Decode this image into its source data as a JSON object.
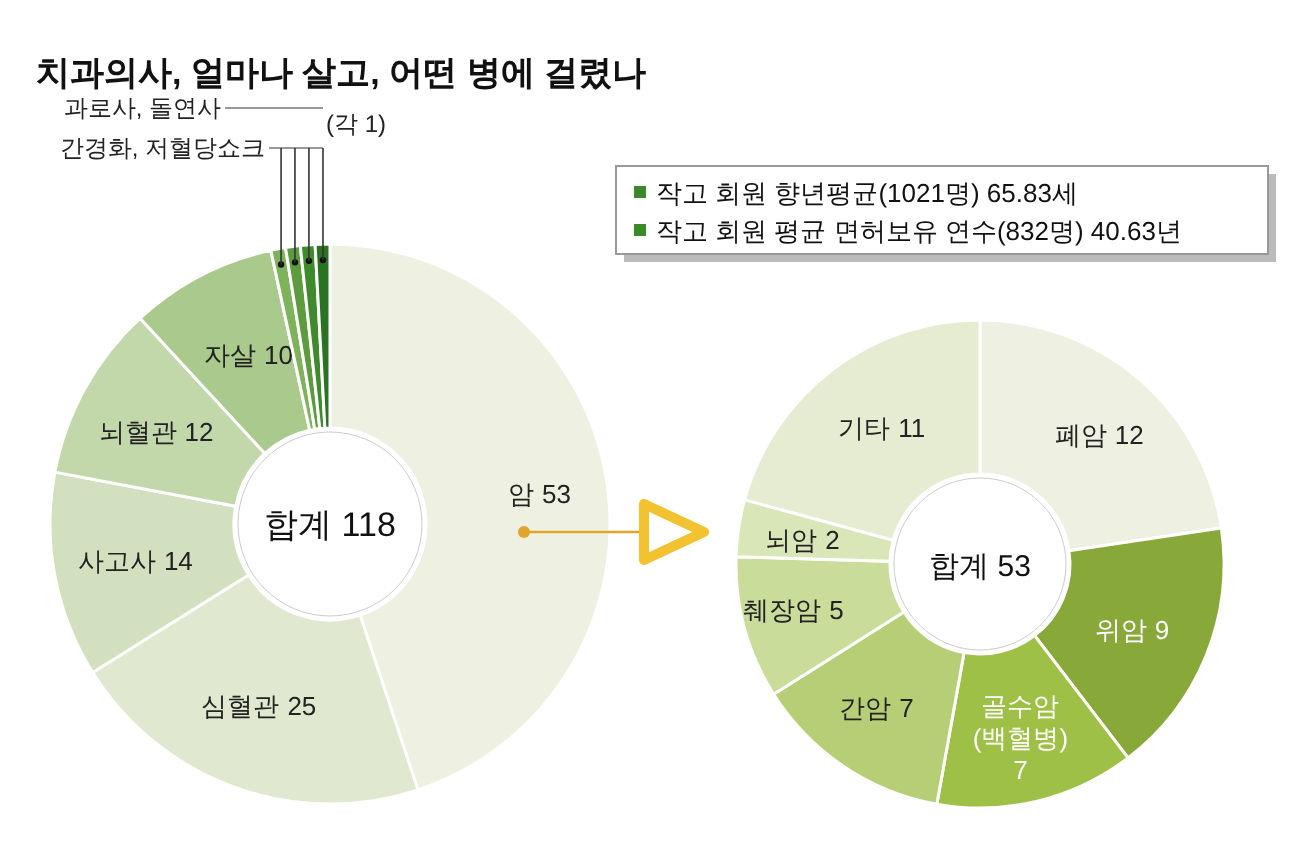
{
  "chart_data": [
    {
      "type": "donut",
      "title": "치과의사, 얼마나 살고, 어떤 병에 걸렸나",
      "categories": [
        "암",
        "심혈관",
        "사고사",
        "뇌혈관",
        "자살",
        null,
        null,
        null,
        null
      ],
      "values": [
        53,
        25,
        14,
        12,
        10,
        1,
        1,
        1,
        1
      ],
      "value_labels": [
        "53",
        "25",
        "14",
        "12",
        "10",
        null,
        null,
        null,
        null
      ],
      "colors": [
        "#eef0e1",
        "#e0e8d0",
        "#d2e0bf",
        "#c2d8aa",
        "#a9ca8c",
        "#7eb25b",
        "#5c9c3e",
        "#3f8a2c",
        "#2a7322"
      ],
      "annotations": [
        "합계 118",
        "과로사, 돌연사",
        "간경화, 저혈당쇼크",
        "(각 1)"
      ]
    },
    {
      "type": "donut",
      "categories": [
        "폐암",
        "위암",
        "골수암(백혈병)",
        "간암",
        "췌장암",
        "뇌암",
        "기타"
      ],
      "values": [
        12,
        9,
        7,
        7,
        5,
        2,
        11
      ],
      "colors": [
        "#eef0e1",
        "#88a83a",
        "#9fc046",
        "#b6cf76",
        "#c9dc9a",
        "#d9e6b8",
        "#e5ecd1"
      ],
      "data_labels": true,
      "annotations": [
        "합계 53"
      ]
    },
    {
      "type": "other",
      "annotations": [
        "작고 회원 향년평균(1021명) 65.83세",
        "작고 회원 평균 면허보유 연수(832명) 40.63년"
      ]
    }
  ]
}
